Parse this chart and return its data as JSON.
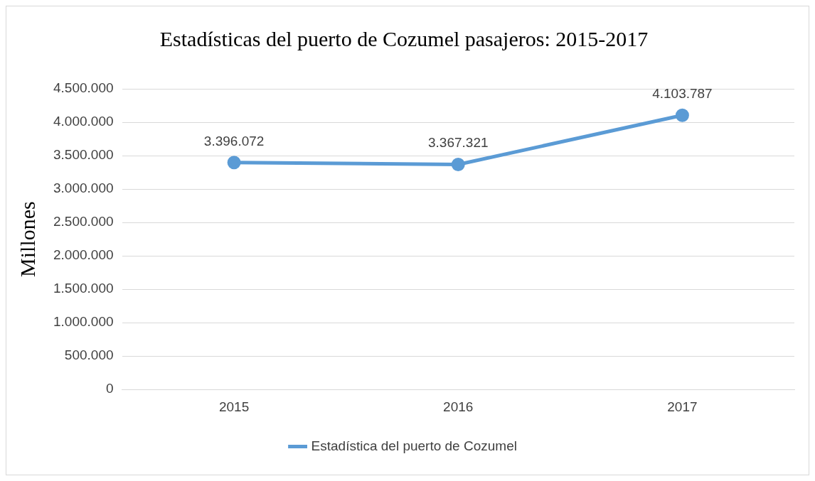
{
  "chart_data": {
    "type": "line",
    "title": "Estadísticas del puerto de Cozumel pasajeros: 2015-2017",
    "ylabel": "Millones",
    "categories": [
      "2015",
      "2016",
      "2017"
    ],
    "series": [
      {
        "name": "Estadística del puerto de Cozumel",
        "color": "#5b9bd5",
        "values": [
          3396072,
          3367321,
          4103787
        ],
        "value_labels": [
          "3.396.072",
          "3.367.321",
          "4.103.787"
        ]
      }
    ],
    "ylim": [
      0,
      4500000
    ],
    "yticks": [
      {
        "value": 0,
        "label": "0"
      },
      {
        "value": 500000,
        "label": "500.000"
      },
      {
        "value": 1000000,
        "label": "1.000.000"
      },
      {
        "value": 1500000,
        "label": "1.500.000"
      },
      {
        "value": 2000000,
        "label": "2.000.000"
      },
      {
        "value": 2500000,
        "label": "2.500.000"
      },
      {
        "value": 3000000,
        "label": "3.000.000"
      },
      {
        "value": 3500000,
        "label": "3.500.000"
      },
      {
        "value": 4000000,
        "label": "4.000.000"
      },
      {
        "value": 4500000,
        "label": "4.500.000"
      }
    ],
    "grid": "y",
    "legend": "bottom",
    "marker": "circle",
    "line_style": "solid"
  }
}
